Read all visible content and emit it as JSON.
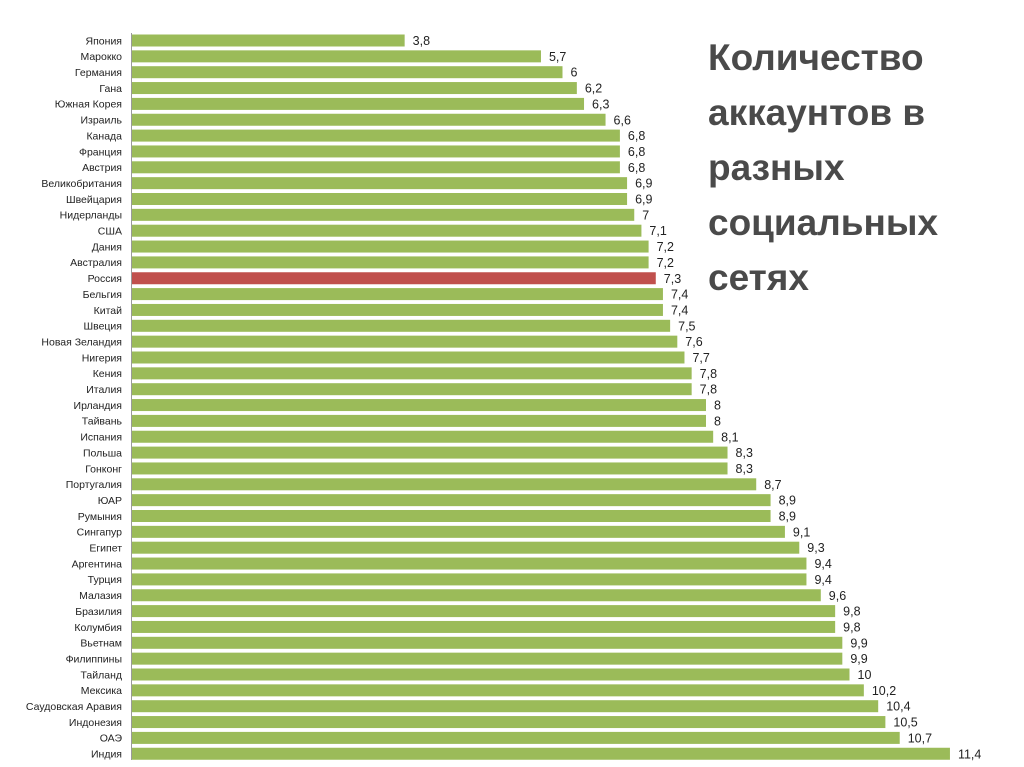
{
  "chart_data": {
    "type": "bar",
    "orientation": "horizontal",
    "title_lines": [
      "Количество",
      "аккаунтов в",
      "разных",
      "социальных",
      "сетях"
    ],
    "categories": [
      "Япония",
      "Марокко",
      "Германия",
      "Гана",
      "Южная Корея",
      "Израиль",
      "Канада",
      "Франция",
      "Австрия",
      "Великобритания",
      "Швейцария",
      "Нидерланды",
      "США",
      "Дания",
      "Австралия",
      "Россия",
      "Бельгия",
      "Китай",
      "Швеция",
      "Новая Зеландия",
      "Нигерия",
      "Кения",
      "Италия",
      "Ирландия",
      "Тайвань",
      "Испания",
      "Польша",
      "Гонконг",
      "Португалия",
      "ЮАР",
      "Румыния",
      "Сингапур",
      "Египет",
      "Аргентина",
      "Турция",
      "Малазия",
      "Бразилия",
      "Колумбия",
      "Вьетнам",
      "Филиппины",
      "Тайланд",
      "Мексика",
      "Саудовская Аравия",
      "Индонезия",
      "ОАЭ",
      "Индия"
    ],
    "values": [
      3.8,
      5.7,
      6,
      6.2,
      6.3,
      6.6,
      6.8,
      6.8,
      6.8,
      6.9,
      6.9,
      7,
      7.1,
      7.2,
      7.2,
      7.3,
      7.4,
      7.4,
      7.5,
      7.6,
      7.7,
      7.8,
      7.8,
      8,
      8,
      8.1,
      8.3,
      8.3,
      8.7,
      8.9,
      8.9,
      9.1,
      9.3,
      9.4,
      9.4,
      9.6,
      9.8,
      9.8,
      9.9,
      9.9,
      10,
      10.2,
      10.4,
      10.5,
      10.7,
      11.4
    ],
    "value_labels": [
      "3,8",
      "5,7",
      "6",
      "6,2",
      "6,3",
      "6,6",
      "6,8",
      "6,8",
      "6,8",
      "6,9",
      "6,9",
      "7",
      "7,1",
      "7,2",
      "7,2",
      "7,3",
      "7,4",
      "7,4",
      "7,5",
      "7,6",
      "7,7",
      "7,8",
      "7,8",
      "8",
      "8",
      "8,1",
      "8,3",
      "8,3",
      "8,7",
      "8,9",
      "8,9",
      "9,1",
      "9,3",
      "9,4",
      "9,4",
      "9,6",
      "9,8",
      "9,8",
      "9,9",
      "9,9",
      "10",
      "10,2",
      "10,4",
      "10,5",
      "10,7",
      "11,4"
    ],
    "highlight_category": "Россия",
    "colors": {
      "bar": "#9bbb59",
      "highlight": "#c0504d",
      "axis": "#9a9a9a",
      "title": "#4a4a4a"
    },
    "xlim": [
      0,
      11.4
    ],
    "legend": "none",
    "grid": false
  }
}
